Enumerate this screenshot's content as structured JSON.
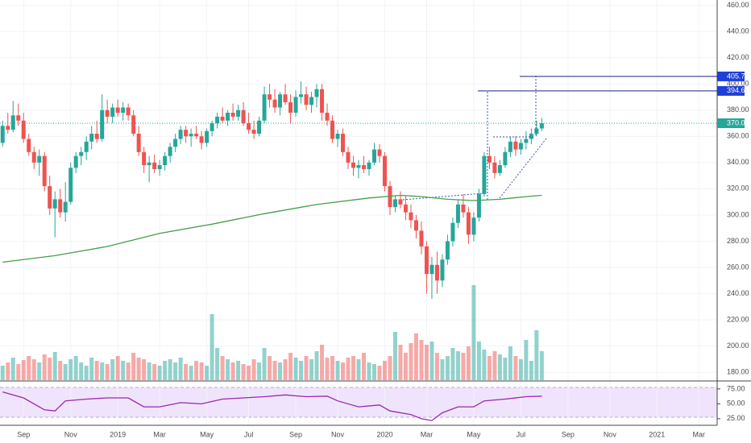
{
  "chart_data": {
    "type": "candlestick",
    "up_color": "#26a69a",
    "down_color": "#ef5350",
    "grid": true,
    "xlim": [
      -0.5,
      136.5
    ],
    "xticks": [
      {
        "value": 4,
        "label": "Sep"
      },
      {
        "value": 13,
        "label": "Nov"
      },
      {
        "value": 22,
        "label": "2019"
      },
      {
        "value": 30,
        "label": "Mar"
      },
      {
        "value": 39,
        "label": "May"
      },
      {
        "value": 47,
        "label": "Jul"
      },
      {
        "value": 56,
        "label": "Sep"
      },
      {
        "value": 64,
        "label": "Nov"
      },
      {
        "value": 73,
        "label": "2020"
      },
      {
        "value": 81,
        "label": "Mar"
      },
      {
        "value": 90,
        "label": "May"
      },
      {
        "value": 99,
        "label": "Jul"
      },
      {
        "value": 108,
        "label": "Sep"
      },
      {
        "value": 116,
        "label": "Nov"
      },
      {
        "value": 125,
        "label": "2021"
      },
      {
        "value": 133,
        "label": "Mar"
      }
    ],
    "ylim": [
      174,
      464
    ],
    "yticks": [
      {
        "value": 180,
        "label": "180.00"
      },
      {
        "value": 200,
        "label": "200.00"
      },
      {
        "value": 220,
        "label": "220.00"
      },
      {
        "value": 240,
        "label": "240.00"
      },
      {
        "value": 260,
        "label": "260.00"
      },
      {
        "value": 280,
        "label": "280.00"
      },
      {
        "value": 300,
        "label": "300.00"
      },
      {
        "value": 320,
        "label": "320.00"
      },
      {
        "value": 340,
        "label": "340.00"
      },
      {
        "value": 360,
        "label": "360.00"
      },
      {
        "value": 380,
        "label": "380.00"
      },
      {
        "value": 400,
        "label": "400.00"
      },
      {
        "value": 420,
        "label": "420.00"
      },
      {
        "value": 440,
        "label": "440.00"
      },
      {
        "value": 460,
        "label": "460.00"
      }
    ],
    "candles": [
      [
        355,
        372,
        352,
        368
      ],
      [
        368,
        378,
        362,
        365
      ],
      [
        365,
        387,
        363,
        376
      ],
      [
        376,
        385,
        368,
        372
      ],
      [
        372,
        378,
        355,
        358
      ],
      [
        358,
        362,
        345,
        348
      ],
      [
        348,
        352,
        335,
        340
      ],
      [
        340,
        350,
        330,
        345
      ],
      [
        345,
        348,
        318,
        322
      ],
      [
        322,
        330,
        300,
        305
      ],
      [
        305,
        318,
        283,
        312
      ],
      [
        312,
        320,
        298,
        302
      ],
      [
        302,
        325,
        295,
        310
      ],
      [
        310,
        340,
        308,
        336
      ],
      [
        336,
        348,
        332,
        345
      ],
      [
        345,
        352,
        338,
        348
      ],
      [
        348,
        360,
        342,
        356
      ],
      [
        356,
        368,
        350,
        362
      ],
      [
        362,
        372,
        355,
        358
      ],
      [
        358,
        392,
        356,
        380
      ],
      [
        380,
        388,
        370,
        375
      ],
      [
        375,
        385,
        370,
        382
      ],
      [
        382,
        388,
        375,
        378
      ],
      [
        378,
        386,
        372,
        382
      ],
      [
        382,
        385,
        372,
        376
      ],
      [
        376,
        380,
        360,
        362
      ],
      [
        362,
        368,
        345,
        348
      ],
      [
        348,
        352,
        332,
        338
      ],
      [
        338,
        345,
        325,
        340
      ],
      [
        340,
        346,
        332,
        335
      ],
      [
        335,
        342,
        330,
        338
      ],
      [
        338,
        348,
        334,
        345
      ],
      [
        345,
        355,
        340,
        352
      ],
      [
        352,
        362,
        348,
        358
      ],
      [
        358,
        368,
        354,
        365
      ],
      [
        365,
        368,
        355,
        360
      ],
      [
        360,
        366,
        352,
        362
      ],
      [
        362,
        368,
        358,
        360
      ],
      [
        360,
        364,
        350,
        355
      ],
      [
        355,
        366,
        352,
        364
      ],
      [
        364,
        372,
        360,
        370
      ],
      [
        370,
        378,
        366,
        375
      ],
      [
        375,
        382,
        370,
        372
      ],
      [
        372,
        380,
        368,
        378
      ],
      [
        378,
        385,
        372,
        375
      ],
      [
        375,
        384,
        372,
        380
      ],
      [
        380,
        386,
        368,
        370
      ],
      [
        370,
        378,
        362,
        365
      ],
      [
        365,
        372,
        358,
        362
      ],
      [
        362,
        375,
        360,
        372
      ],
      [
        372,
        398,
        370,
        392
      ],
      [
        392,
        400,
        382,
        388
      ],
      [
        388,
        396,
        378,
        382
      ],
      [
        382,
        394,
        376,
        392
      ],
      [
        392,
        400,
        384,
        386
      ],
      [
        386,
        392,
        370,
        378
      ],
      [
        378,
        395,
        375,
        390
      ],
      [
        390,
        402,
        385,
        392
      ],
      [
        392,
        398,
        380,
        384
      ],
      [
        384,
        394,
        378,
        390
      ],
      [
        390,
        400,
        382,
        396
      ],
      [
        396,
        400,
        372,
        378
      ],
      [
        378,
        385,
        368,
        372
      ],
      [
        372,
        376,
        355,
        358
      ],
      [
        358,
        365,
        352,
        362
      ],
      [
        362,
        366,
        345,
        348
      ],
      [
        348,
        352,
        335,
        340
      ],
      [
        340,
        345,
        330,
        336
      ],
      [
        336,
        342,
        328,
        338
      ],
      [
        338,
        345,
        332,
        335
      ],
      [
        335,
        342,
        330,
        340
      ],
      [
        340,
        355,
        338,
        350
      ],
      [
        350,
        354,
        340,
        345
      ],
      [
        345,
        348,
        318,
        322
      ],
      [
        322,
        326,
        300,
        306
      ],
      [
        306,
        315,
        302,
        312
      ],
      [
        312,
        318,
        305,
        308
      ],
      [
        308,
        315,
        296,
        302
      ],
      [
        302,
        308,
        290,
        296
      ],
      [
        296,
        300,
        282,
        288
      ],
      [
        288,
        295,
        270,
        276
      ],
      [
        276,
        280,
        240,
        255
      ],
      [
        255,
        268,
        236,
        262
      ],
      [
        262,
        272,
        240,
        250
      ],
      [
        250,
        270,
        245,
        266
      ],
      [
        266,
        285,
        262,
        280
      ],
      [
        280,
        298,
        276,
        294
      ],
      [
        294,
        312,
        290,
        308
      ],
      [
        308,
        316,
        298,
        302
      ],
      [
        302,
        306,
        278,
        285
      ],
      [
        285,
        302,
        280,
        298
      ],
      [
        298,
        320,
        295,
        316
      ],
      [
        316,
        348,
        314,
        345
      ],
      [
        345,
        352,
        335,
        340
      ],
      [
        340,
        345,
        328,
        332
      ],
      [
        332,
        342,
        330,
        338
      ],
      [
        338,
        352,
        336,
        348
      ],
      [
        348,
        360,
        344,
        356
      ],
      [
        356,
        360,
        345,
        350
      ],
      [
        350,
        358,
        346,
        355
      ],
      [
        355,
        364,
        350,
        358
      ],
      [
        358,
        366,
        354,
        362
      ],
      [
        362,
        372,
        360,
        366
      ],
      [
        366,
        374,
        364,
        370
      ]
    ],
    "volume": [
      18,
      22,
      28,
      20,
      25,
      30,
      26,
      22,
      32,
      28,
      35,
      24,
      20,
      26,
      30,
      22,
      18,
      28,
      24,
      22,
      20,
      26,
      30,
      24,
      22,
      34,
      28,
      26,
      22,
      20,
      18,
      24,
      26,
      22,
      28,
      20,
      18,
      24,
      22,
      18,
      82,
      40,
      30,
      26,
      22,
      24,
      20,
      18,
      26,
      22,
      40,
      30,
      24,
      22,
      26,
      34,
      28,
      24,
      30,
      26,
      36,
      44,
      28,
      30,
      24,
      22,
      28,
      30,
      26,
      34,
      22,
      20,
      18,
      24,
      30,
      60,
      44,
      34,
      46,
      58,
      50,
      44,
      48,
      34,
      26,
      30,
      40,
      36,
      34,
      42,
      118,
      48,
      38,
      30,
      36,
      32,
      28,
      42,
      30,
      26,
      50,
      24,
      62,
      36
    ],
    "volume_lim": [
      0,
      120
    ],
    "ma": {
      "color": "#43a047",
      "x": [
        0,
        10,
        20,
        30,
        40,
        50,
        60,
        70,
        76,
        80,
        85,
        90,
        95,
        100,
        103
      ],
      "values": [
        264,
        269,
        276,
        286,
        293,
        301,
        308,
        313,
        315,
        314,
        312,
        311,
        312,
        314,
        315
      ]
    },
    "price_lines": [
      {
        "value": 405.7,
        "label": "405.70",
        "color": "#1a237e",
        "label_color": "#1e3fd8"
      },
      {
        "value": 394.65,
        "label": "394.65",
        "color": "#1a237e",
        "label_color": "#1e3fd8"
      },
      {
        "value": 370,
        "label": "370.00",
        "color": "#26a69a",
        "label_color": "#26a69a"
      }
    ],
    "rsi": {
      "color": "#9c27b0",
      "ylim": [
        14,
        87
      ],
      "yticks": [
        {
          "value": 75,
          "label": "75.00"
        },
        {
          "value": 50,
          "label": "50.00"
        },
        {
          "value": 25,
          "label": "25.00"
        }
      ],
      "x": [
        0,
        4,
        8,
        10,
        12,
        16,
        20,
        24,
        27,
        30,
        34,
        38,
        42,
        46,
        50,
        54,
        58,
        62,
        64,
        68,
        72,
        74,
        78,
        80,
        82,
        84,
        87,
        90,
        92,
        96,
        100,
        103
      ],
      "values": [
        70,
        60,
        40,
        38,
        55,
        58,
        60,
        60,
        45,
        45,
        52,
        50,
        58,
        60,
        62,
        65,
        62,
        63,
        55,
        45,
        48,
        38,
        32,
        25,
        22,
        35,
        45,
        45,
        55,
        58,
        62,
        63
      ]
    }
  }
}
